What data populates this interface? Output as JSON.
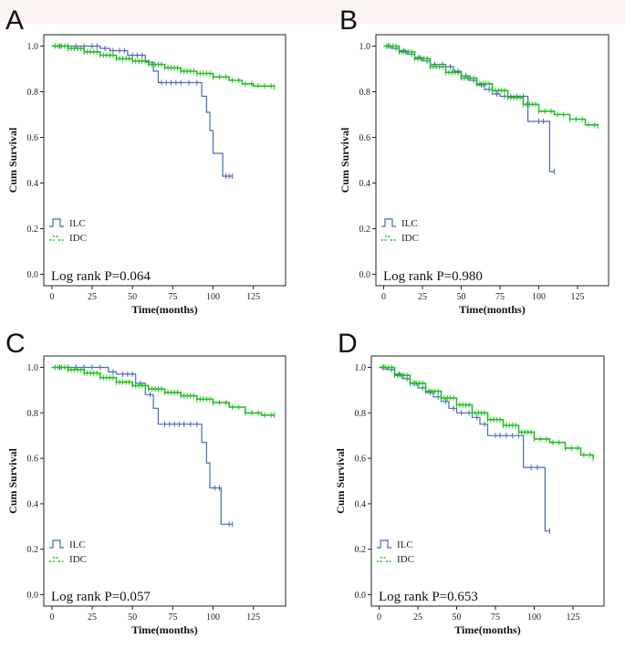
{
  "figure": {
    "colors": {
      "ilc": "#4a67b8",
      "idc": "#1fbf1f",
      "axis": "#222222",
      "band": "#fbf4f2"
    }
  },
  "chart_data": [
    {
      "panel": "A",
      "type": "line",
      "xlabel": "Time(months)",
      "ylabel": "Cum Survival",
      "xlim": [
        -5,
        145
      ],
      "ylim": [
        -0.05,
        1.05
      ],
      "xticks": [
        0,
        25,
        50,
        75,
        100,
        125
      ],
      "yticks": [
        0.0,
        0.2,
        0.4,
        0.6,
        0.8,
        1.0
      ],
      "ytick_labels": [
        "0.0",
        "0.2",
        "0.4",
        "0.6",
        "0.8",
        "1.0"
      ],
      "legend": [
        "ILC",
        "IDC"
      ],
      "annotation": "Log rank P=0.064",
      "series": [
        {
          "name": "ILC",
          "steps": [
            [
              0,
              1.0
            ],
            [
              30,
              1.0
            ],
            [
              30,
              0.99
            ],
            [
              36,
              0.99
            ],
            [
              36,
              0.98
            ],
            [
              47,
              0.98
            ],
            [
              47,
              0.96
            ],
            [
              58,
              0.96
            ],
            [
              58,
              0.93
            ],
            [
              63,
              0.93
            ],
            [
              63,
              0.89
            ],
            [
              66,
              0.89
            ],
            [
              66,
              0.84
            ],
            [
              93,
              0.84
            ],
            [
              93,
              0.78
            ],
            [
              96,
              0.78
            ],
            [
              96,
              0.71
            ],
            [
              98,
              0.71
            ],
            [
              98,
              0.63
            ],
            [
              100,
              0.63
            ],
            [
              100,
              0.53
            ],
            [
              106,
              0.53
            ],
            [
              106,
              0.43
            ],
            [
              112,
              0.43
            ]
          ],
          "censor": [
            5,
            10,
            15,
            20,
            25,
            28,
            33,
            38,
            42,
            45,
            50,
            53,
            56,
            60,
            68,
            71,
            74,
            77,
            80,
            85,
            90,
            108,
            110,
            112
          ]
        },
        {
          "name": "IDC",
          "steps": [
            [
              0,
              1.0
            ],
            [
              10,
              0.99
            ],
            [
              20,
              0.975
            ],
            [
              30,
              0.96
            ],
            [
              40,
              0.945
            ],
            [
              50,
              0.935
            ],
            [
              60,
              0.92
            ],
            [
              70,
              0.905
            ],
            [
              80,
              0.89
            ],
            [
              90,
              0.88
            ],
            [
              100,
              0.865
            ],
            [
              110,
              0.85
            ],
            [
              118,
              0.835
            ],
            [
              125,
              0.825
            ],
            [
              138,
              0.82
            ]
          ],
          "censor": [
            2,
            4,
            6,
            8,
            10,
            12,
            14,
            16,
            18,
            20,
            22,
            24,
            26,
            28,
            30,
            32,
            34,
            36,
            38,
            40,
            42,
            44,
            46,
            48,
            50,
            52,
            54,
            56,
            58,
            60,
            62,
            64,
            66,
            68,
            70,
            72,
            74,
            76,
            78,
            80,
            82,
            84,
            86,
            88,
            90,
            92,
            94,
            96,
            98,
            100,
            104,
            108,
            112,
            116,
            120,
            124,
            128,
            132,
            136,
            138
          ]
        }
      ]
    },
    {
      "panel": "B",
      "type": "line",
      "xlabel": "Time(months)",
      "ylabel": "Cum Survival",
      "xlim": [
        -5,
        145
      ],
      "ylim": [
        -0.05,
        1.05
      ],
      "xticks": [
        0,
        25,
        50,
        75,
        100,
        125
      ],
      "yticks": [
        0.0,
        0.2,
        0.4,
        0.6,
        0.8,
        1.0
      ],
      "ytick_labels": [
        "0.0",
        "0.2",
        "0.4",
        "0.6",
        "0.8",
        "1.0"
      ],
      "legend": [
        "ILC",
        "IDC"
      ],
      "annotation": "Log rank P=0.980",
      "series": [
        {
          "name": "ILC",
          "steps": [
            [
              0,
              1.0
            ],
            [
              5,
              0.99
            ],
            [
              10,
              0.98
            ],
            [
              15,
              0.965
            ],
            [
              20,
              0.95
            ],
            [
              25,
              0.935
            ],
            [
              30,
              0.92
            ],
            [
              40,
              0.91
            ],
            [
              45,
              0.89
            ],
            [
              50,
              0.87
            ],
            [
              55,
              0.85
            ],
            [
              60,
              0.83
            ],
            [
              65,
              0.81
            ],
            [
              70,
              0.79
            ],
            [
              75,
              0.78
            ],
            [
              93,
              0.78
            ],
            [
              93,
              0.67
            ],
            [
              107,
              0.67
            ],
            [
              107,
              0.45
            ],
            [
              110,
              0.45
            ]
          ],
          "censor": [
            3,
            8,
            13,
            18,
            23,
            28,
            33,
            38,
            43,
            48,
            53,
            58,
            63,
            68,
            73,
            78,
            82,
            86,
            90,
            100,
            103,
            110
          ]
        },
        {
          "name": "IDC",
          "steps": [
            [
              0,
              1.0
            ],
            [
              10,
              0.975
            ],
            [
              20,
              0.945
            ],
            [
              30,
              0.91
            ],
            [
              40,
              0.885
            ],
            [
              50,
              0.86
            ],
            [
              60,
              0.835
            ],
            [
              70,
              0.805
            ],
            [
              80,
              0.775
            ],
            [
              90,
              0.745
            ],
            [
              100,
              0.715
            ],
            [
              110,
              0.7
            ],
            [
              120,
              0.68
            ],
            [
              130,
              0.655
            ],
            [
              138,
              0.65
            ]
          ],
          "censor": [
            2,
            4,
            6,
            8,
            10,
            12,
            14,
            16,
            18,
            20,
            22,
            24,
            26,
            28,
            30,
            32,
            34,
            36,
            38,
            40,
            42,
            44,
            46,
            48,
            50,
            52,
            54,
            56,
            58,
            60,
            62,
            64,
            66,
            68,
            70,
            72,
            74,
            76,
            78,
            80,
            82,
            84,
            86,
            88,
            90,
            92,
            94,
            96,
            98,
            100,
            104,
            108,
            112,
            116,
            120,
            124,
            128,
            132,
            136,
            138
          ]
        }
      ]
    },
    {
      "panel": "C",
      "type": "line",
      "xlabel": "Time(months)",
      "ylabel": "Cum Survival",
      "xlim": [
        -5,
        145
      ],
      "ylim": [
        -0.05,
        1.05
      ],
      "xticks": [
        0,
        25,
        50,
        75,
        100,
        125
      ],
      "yticks": [
        0.0,
        0.2,
        0.4,
        0.6,
        0.8,
        1.0
      ],
      "ytick_labels": [
        "0.0",
        "0.2",
        "0.4",
        "0.6",
        "0.8",
        "1.0"
      ],
      "legend": [
        "ILC",
        "IDC"
      ],
      "annotation": "Log rank P=0.057",
      "series": [
        {
          "name": "ILC",
          "steps": [
            [
              0,
              1.0
            ],
            [
              35,
              1.0
            ],
            [
              35,
              0.98
            ],
            [
              40,
              0.98
            ],
            [
              40,
              0.97
            ],
            [
              52,
              0.97
            ],
            [
              52,
              0.93
            ],
            [
              58,
              0.93
            ],
            [
              58,
              0.88
            ],
            [
              63,
              0.88
            ],
            [
              63,
              0.82
            ],
            [
              66,
              0.82
            ],
            [
              66,
              0.75
            ],
            [
              93,
              0.75
            ],
            [
              93,
              0.67
            ],
            [
              96,
              0.67
            ],
            [
              96,
              0.58
            ],
            [
              98,
              0.58
            ],
            [
              98,
              0.47
            ],
            [
              105,
              0.47
            ],
            [
              105,
              0.31
            ],
            [
              112,
              0.31
            ]
          ],
          "censor": [
            5,
            10,
            15,
            20,
            25,
            30,
            38,
            44,
            47,
            50,
            55,
            61,
            70,
            73,
            76,
            79,
            82,
            86,
            90,
            101,
            104,
            110,
            112
          ]
        },
        {
          "name": "IDC",
          "steps": [
            [
              0,
              1.0
            ],
            [
              10,
              0.99
            ],
            [
              20,
              0.975
            ],
            [
              30,
              0.955
            ],
            [
              40,
              0.935
            ],
            [
              50,
              0.92
            ],
            [
              60,
              0.905
            ],
            [
              70,
              0.89
            ],
            [
              80,
              0.875
            ],
            [
              90,
              0.86
            ],
            [
              100,
              0.845
            ],
            [
              110,
              0.825
            ],
            [
              120,
              0.8
            ],
            [
              130,
              0.79
            ],
            [
              138,
              0.79
            ]
          ],
          "censor": [
            2,
            4,
            6,
            8,
            10,
            12,
            14,
            16,
            18,
            20,
            22,
            24,
            26,
            28,
            30,
            32,
            34,
            36,
            38,
            40,
            42,
            44,
            46,
            48,
            50,
            52,
            54,
            56,
            58,
            60,
            62,
            64,
            66,
            68,
            70,
            72,
            74,
            76,
            78,
            80,
            82,
            84,
            86,
            88,
            90,
            92,
            94,
            96,
            98,
            100,
            104,
            108,
            112,
            116,
            120,
            124,
            128,
            132,
            136,
            138
          ]
        }
      ]
    },
    {
      "panel": "D",
      "type": "line",
      "xlabel": "Time(months)",
      "ylabel": "Cum Survival",
      "xlim": [
        -5,
        145
      ],
      "ylim": [
        -0.05,
        1.05
      ],
      "xticks": [
        0,
        25,
        50,
        75,
        100,
        125
      ],
      "yticks": [
        0.0,
        0.2,
        0.4,
        0.6,
        0.8,
        1.0
      ],
      "ytick_labels": [
        "0.0",
        "0.2",
        "0.4",
        "0.6",
        "0.8",
        "1.0"
      ],
      "legend": [
        "ILC",
        "IDC"
      ],
      "annotation": "Log rank P=0.653",
      "series": [
        {
          "name": "ILC",
          "steps": [
            [
              0,
              1.0
            ],
            [
              5,
              0.99
            ],
            [
              10,
              0.97
            ],
            [
              15,
              0.95
            ],
            [
              20,
              0.93
            ],
            [
              25,
              0.91
            ],
            [
              30,
              0.89
            ],
            [
              35,
              0.87
            ],
            [
              40,
              0.85
            ],
            [
              45,
              0.82
            ],
            [
              50,
              0.8
            ],
            [
              60,
              0.78
            ],
            [
              65,
              0.75
            ],
            [
              70,
              0.7
            ],
            [
              93,
              0.7
            ],
            [
              93,
              0.56
            ],
            [
              107,
              0.56
            ],
            [
              107,
              0.28
            ],
            [
              110,
              0.28
            ]
          ],
          "censor": [
            3,
            8,
            13,
            18,
            23,
            28,
            33,
            38,
            43,
            48,
            53,
            58,
            63,
            68,
            75,
            78,
            82,
            86,
            90,
            98,
            102,
            110
          ]
        },
        {
          "name": "IDC",
          "steps": [
            [
              0,
              1.0
            ],
            [
              10,
              0.965
            ],
            [
              20,
              0.93
            ],
            [
              30,
              0.895
            ],
            [
              40,
              0.865
            ],
            [
              50,
              0.835
            ],
            [
              60,
              0.8
            ],
            [
              70,
              0.77
            ],
            [
              80,
              0.745
            ],
            [
              90,
              0.715
            ],
            [
              100,
              0.685
            ],
            [
              110,
              0.67
            ],
            [
              120,
              0.645
            ],
            [
              130,
              0.615
            ],
            [
              138,
              0.6
            ]
          ],
          "censor": [
            2,
            4,
            6,
            8,
            10,
            12,
            14,
            16,
            18,
            20,
            22,
            24,
            26,
            28,
            30,
            32,
            34,
            36,
            38,
            40,
            42,
            44,
            46,
            48,
            50,
            52,
            54,
            56,
            58,
            60,
            62,
            64,
            66,
            68,
            70,
            72,
            74,
            76,
            78,
            80,
            82,
            84,
            86,
            88,
            90,
            92,
            94,
            96,
            98,
            100,
            104,
            108,
            112,
            116,
            120,
            124,
            128,
            132,
            136,
            138
          ]
        }
      ]
    }
  ]
}
